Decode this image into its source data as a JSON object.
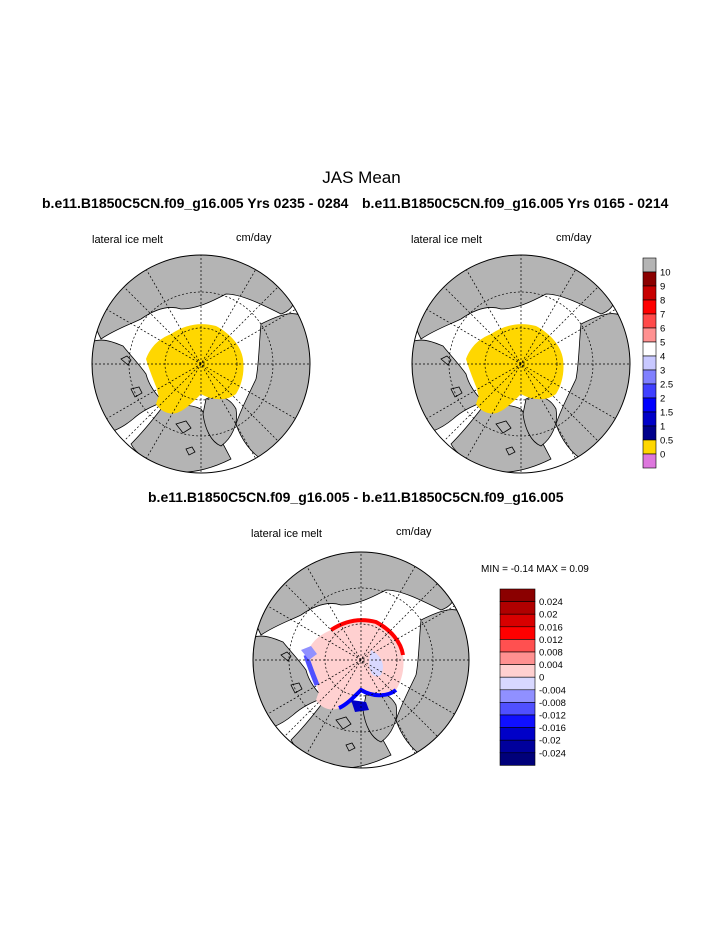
{
  "figure": {
    "title": "JAS Mean",
    "panels": [
      {
        "title": "b.e11.B1850C5CN.f09_g16.005  Yrs 0235 - 0284",
        "variable": "lateral ice melt",
        "units": "cm/day"
      },
      {
        "title": "b.e11.B1850C5CN.f09_g16.005  Yrs 0165 - 0214",
        "variable": "lateral ice melt",
        "units": "cm/day"
      },
      {
        "title": "b.e11.B1850C5CN.f09_g16.005 - b.e11.B1850C5CN.f09_g16.005",
        "variable": "lateral ice melt",
        "units": "cm/day",
        "stats": "MIN =  -0.14 MAX =   0.09"
      }
    ]
  },
  "colorbar_top": {
    "labels": [
      "10",
      "9",
      "8",
      "7",
      "6",
      "5",
      "4",
      "3",
      "2.5",
      "2",
      "1.5",
      "1",
      "0.5",
      "0"
    ],
    "colors": [
      "#b4b4b4",
      "#8b0000",
      "#c80000",
      "#ff0000",
      "#ff4a4a",
      "#ff9191",
      "#ffffff",
      "#c8c8ff",
      "#8080ff",
      "#4040ff",
      "#0000ff",
      "#0000c8",
      "#00008b",
      "#ffd700",
      "#dd77dd"
    ]
  },
  "colorbar_diff": {
    "labels": [
      "0.024",
      "0.02",
      "0.016",
      "0.012",
      "0.008",
      "0.004",
      "0",
      "-0.004",
      "-0.008",
      "-0.012",
      "-0.016",
      "-0.02",
      "-0.024"
    ],
    "colors": [
      "#8b0000",
      "#b00000",
      "#d80000",
      "#ff0000",
      "#ff5050",
      "#ff9090",
      "#ffd0d0",
      "#d8d8ff",
      "#9090ff",
      "#5050ff",
      "#1010ff",
      "#0000c8",
      "#00009c",
      "#00007a"
    ]
  },
  "style": {
    "land": "#b4b4b4",
    "ocean": "#ffffff",
    "ice": "#ffd700"
  }
}
